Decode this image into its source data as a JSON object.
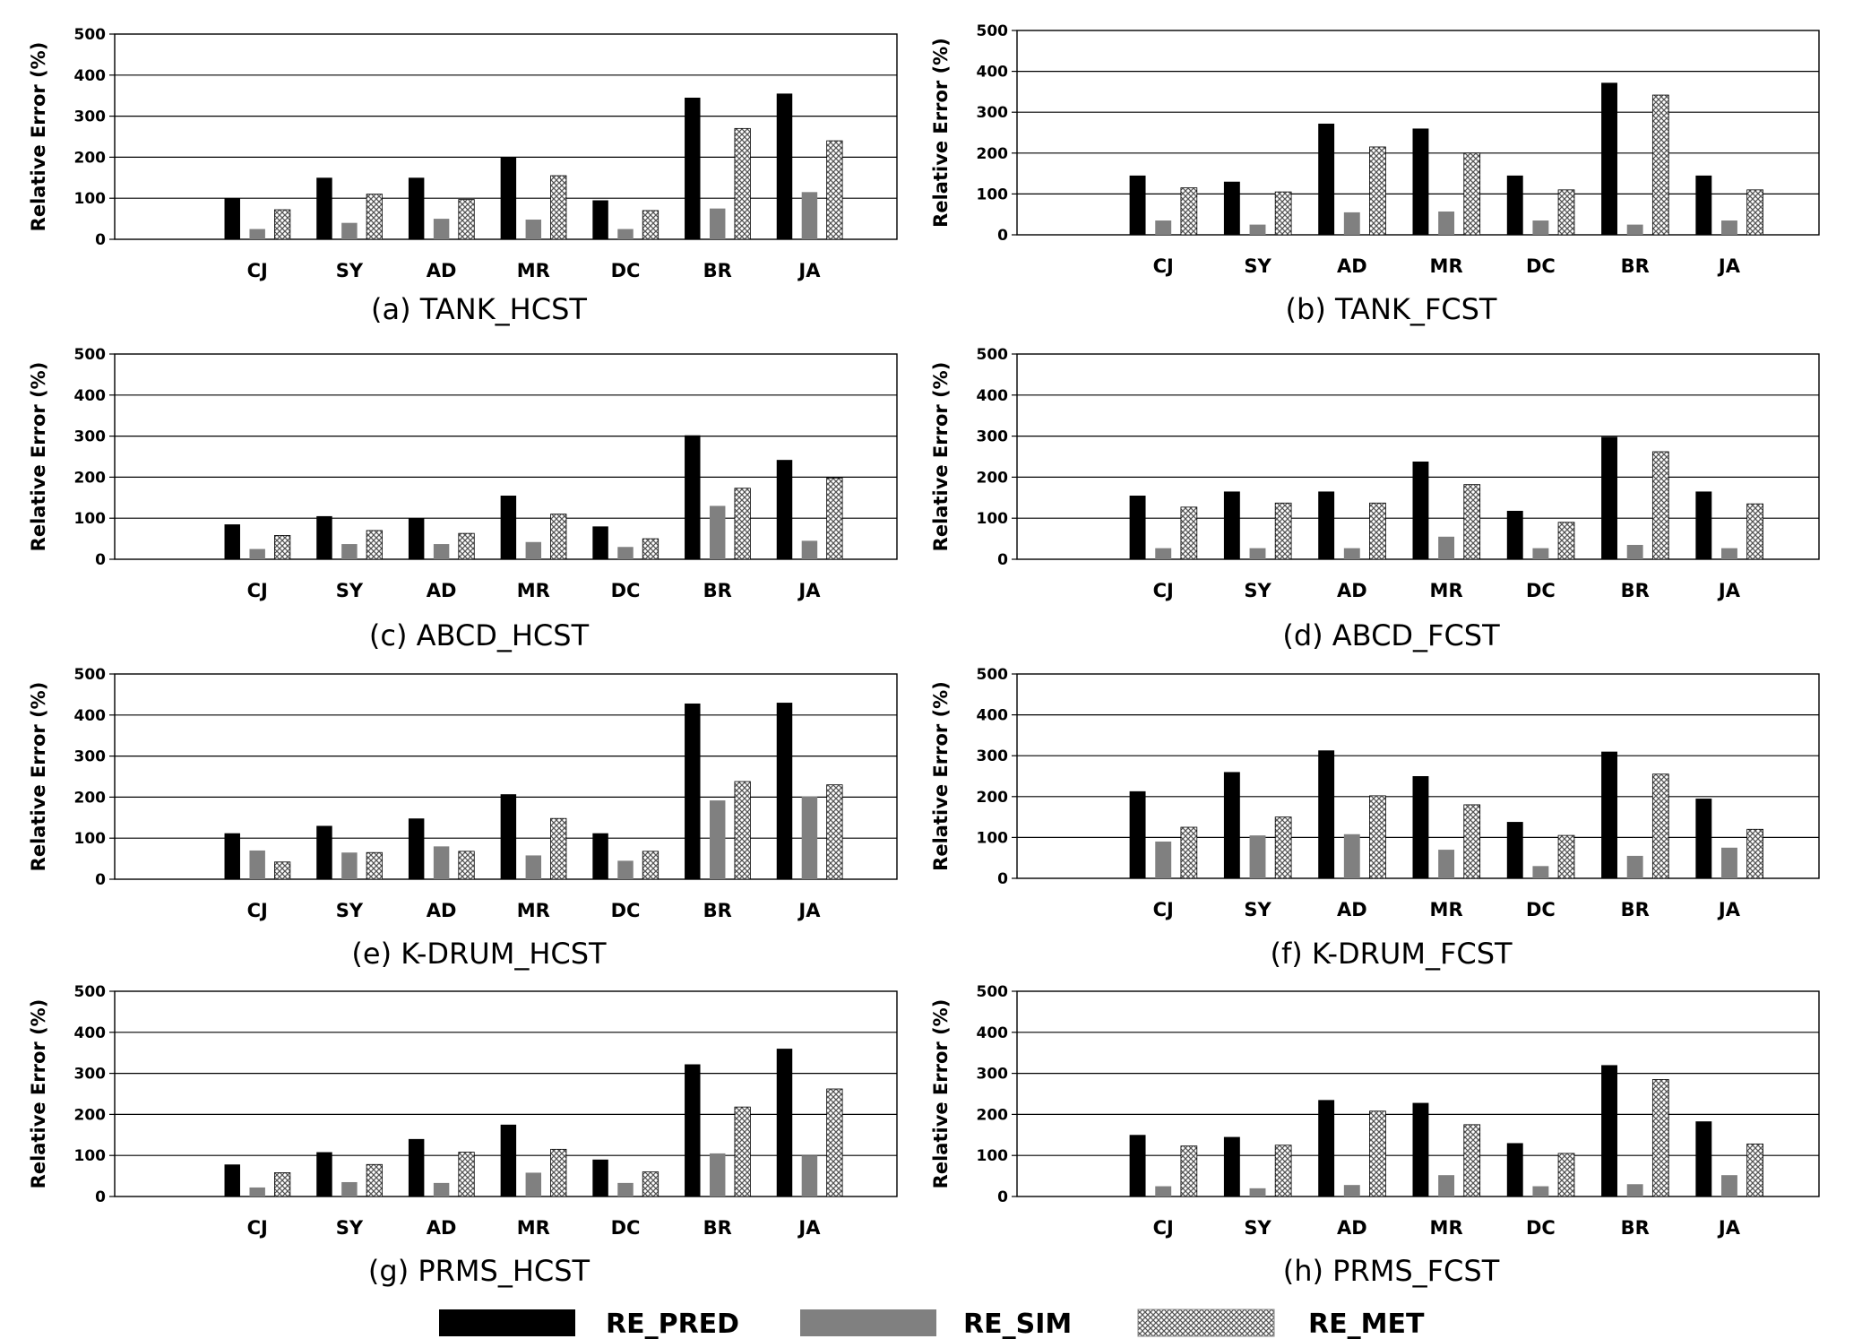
{
  "figure_caption_colors": {
    "RE_PRED": "#000000",
    "RE_SIM": "#808080",
    "RE_MET_fill": "#ffffff",
    "RE_MET_hatch": "#555555"
  },
  "legend": {
    "items": [
      "RE_PRED",
      "RE_SIM",
      "RE_MET"
    ]
  },
  "chart_data": [
    {
      "type": "bar",
      "title": "(a) TANK_HCST",
      "ylabel": "Relative Error (%)",
      "xlabel": "",
      "ylim": [
        0,
        500
      ],
      "yticks": [
        0,
        100,
        200,
        300,
        400,
        500
      ],
      "grid": true,
      "categories": [
        "CJ",
        "SY",
        "AD",
        "MR",
        "DC",
        "BR",
        "JA"
      ],
      "series": [
        {
          "name": "RE_PRED",
          "values": [
            100,
            150,
            150,
            200,
            95,
            345,
            355
          ]
        },
        {
          "name": "RE_SIM",
          "values": [
            25,
            40,
            50,
            48,
            25,
            75,
            115
          ]
        },
        {
          "name": "RE_MET",
          "values": [
            72,
            110,
            97,
            155,
            70,
            270,
            240
          ]
        }
      ]
    },
    {
      "type": "bar",
      "title": "(b) TANK_FCST",
      "ylabel": "Relative Error (%)",
      "xlabel": "",
      "ylim": [
        0,
        500
      ],
      "yticks": [
        0,
        100,
        200,
        300,
        400,
        500
      ],
      "grid": true,
      "categories": [
        "CJ",
        "SY",
        "AD",
        "MR",
        "DC",
        "BR",
        "JA"
      ],
      "series": [
        {
          "name": "RE_PRED",
          "values": [
            145,
            130,
            272,
            260,
            145,
            372,
            145
          ]
        },
        {
          "name": "RE_SIM",
          "values": [
            35,
            25,
            55,
            57,
            35,
            25,
            35
          ]
        },
        {
          "name": "RE_MET",
          "values": [
            115,
            105,
            215,
            200,
            110,
            342,
            110
          ]
        }
      ]
    },
    {
      "type": "bar",
      "title": "(c) ABCD_HCST",
      "ylabel": "Relative Error (%)",
      "xlabel": "",
      "ylim": [
        0,
        500
      ],
      "yticks": [
        0,
        100,
        200,
        300,
        400,
        500
      ],
      "grid": true,
      "categories": [
        "CJ",
        "SY",
        "AD",
        "MR",
        "DC",
        "BR",
        "JA"
      ],
      "series": [
        {
          "name": "RE_PRED",
          "values": [
            85,
            105,
            100,
            155,
            80,
            302,
            242
          ]
        },
        {
          "name": "RE_SIM",
          "values": [
            25,
            37,
            37,
            42,
            30,
            130,
            45
          ]
        },
        {
          "name": "RE_MET",
          "values": [
            58,
            70,
            63,
            110,
            50,
            173,
            198
          ]
        }
      ]
    },
    {
      "type": "bar",
      "title": "(d) ABCD_FCST",
      "ylabel": "Relative Error (%)",
      "xlabel": "",
      "ylim": [
        0,
        500
      ],
      "yticks": [
        0,
        100,
        200,
        300,
        400,
        500
      ],
      "grid": true,
      "categories": [
        "CJ",
        "SY",
        "AD",
        "MR",
        "DC",
        "BR",
        "JA"
      ],
      "series": [
        {
          "name": "RE_PRED",
          "values": [
            155,
            165,
            165,
            238,
            118,
            298,
            165
          ]
        },
        {
          "name": "RE_SIM",
          "values": [
            27,
            27,
            27,
            55,
            27,
            35,
            27
          ]
        },
        {
          "name": "RE_MET",
          "values": [
            127,
            137,
            137,
            182,
            90,
            262,
            135
          ]
        }
      ]
    },
    {
      "type": "bar",
      "title": "(e) K-DRUM_HCST",
      "ylabel": "Relative Error (%)",
      "xlabel": "",
      "ylim": [
        0,
        500
      ],
      "yticks": [
        0,
        100,
        200,
        300,
        400,
        500
      ],
      "grid": true,
      "categories": [
        "CJ",
        "SY",
        "AD",
        "MR",
        "DC",
        "BR",
        "JA"
      ],
      "series": [
        {
          "name": "RE_PRED",
          "values": [
            112,
            130,
            148,
            207,
            112,
            428,
            430
          ]
        },
        {
          "name": "RE_SIM",
          "values": [
            70,
            65,
            80,
            58,
            45,
            192,
            202
          ]
        },
        {
          "name": "RE_MET",
          "values": [
            42,
            65,
            68,
            148,
            68,
            238,
            230
          ]
        }
      ]
    },
    {
      "type": "bar",
      "title": "(f) K-DRUM_FCST",
      "ylabel": "Relative Error (%)",
      "xlabel": "",
      "ylim": [
        0,
        500
      ],
      "yticks": [
        0,
        100,
        200,
        300,
        400,
        500
      ],
      "grid": true,
      "categories": [
        "CJ",
        "SY",
        "AD",
        "MR",
        "DC",
        "BR",
        "JA"
      ],
      "series": [
        {
          "name": "RE_PRED",
          "values": [
            213,
            260,
            313,
            250,
            138,
            310,
            195
          ]
        },
        {
          "name": "RE_SIM",
          "values": [
            90,
            105,
            108,
            70,
            30,
            55,
            75
          ]
        },
        {
          "name": "RE_MET",
          "values": [
            125,
            150,
            202,
            180,
            105,
            255,
            120
          ]
        }
      ]
    },
    {
      "type": "bar",
      "title": "(g) PRMS_HCST",
      "ylabel": "Relative Error (%)",
      "xlabel": "",
      "ylim": [
        0,
        500
      ],
      "yticks": [
        0,
        100,
        200,
        300,
        400,
        500
      ],
      "grid": true,
      "categories": [
        "CJ",
        "SY",
        "AD",
        "MR",
        "DC",
        "BR",
        "JA"
      ],
      "series": [
        {
          "name": "RE_PRED",
          "values": [
            78,
            108,
            140,
            175,
            90,
            322,
            360
          ]
        },
        {
          "name": "RE_SIM",
          "values": [
            22,
            35,
            33,
            58,
            33,
            105,
            100
          ]
        },
        {
          "name": "RE_MET",
          "values": [
            58,
            78,
            108,
            115,
            60,
            218,
            262
          ]
        }
      ]
    },
    {
      "type": "bar",
      "title": "(h) PRMS_FCST",
      "ylabel": "Relative Error (%)",
      "xlabel": "",
      "ylim": [
        0,
        500
      ],
      "yticks": [
        0,
        100,
        200,
        300,
        400,
        500
      ],
      "grid": true,
      "categories": [
        "CJ",
        "SY",
        "AD",
        "MR",
        "DC",
        "BR",
        "JA"
      ],
      "series": [
        {
          "name": "RE_PRED",
          "values": [
            150,
            145,
            235,
            228,
            130,
            320,
            183
          ]
        },
        {
          "name": "RE_SIM",
          "values": [
            25,
            20,
            28,
            52,
            25,
            30,
            52
          ]
        },
        {
          "name": "RE_MET",
          "values": [
            123,
            125,
            208,
            175,
            105,
            285,
            128
          ]
        }
      ]
    }
  ]
}
